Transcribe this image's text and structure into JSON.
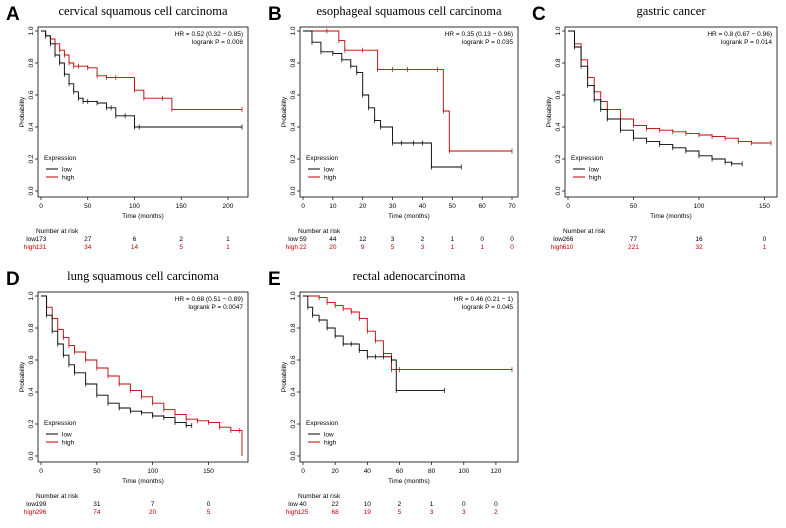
{
  "colors": {
    "low": "#000000",
    "high": "#c00000"
  },
  "common": {
    "ylabel": "Probability",
    "xlabel": "Time (months)",
    "legend_title": "Expression",
    "legend_low": "low",
    "legend_high": "high",
    "risk_title": "Number at risk",
    "risk_low_label": "low",
    "risk_high_label": "high"
  },
  "panels": [
    {
      "label": "A",
      "title": "cervical squamous cell carcinoma",
      "hr": "HR = 0.52 (0.32 − 0.85)",
      "logrank": "logrank P = 0.008",
      "xlim": [
        0,
        215
      ],
      "xticks": [
        0,
        50,
        100,
        150,
        200
      ],
      "risk_ticks": [
        0,
        50,
        100,
        150,
        200
      ],
      "risk_low": [
        "173",
        "27",
        "6",
        "2",
        "1"
      ],
      "risk_high": [
        "131",
        "34",
        "14",
        "5",
        "1"
      ]
    },
    {
      "label": "B",
      "title": "esophageal squamous cell carcinoma",
      "hr": "HR = 0.35 (0.13 − 0.96)",
      "logrank": "logrank P = 0.035",
      "xlim": [
        0,
        70
      ],
      "xticks": [
        0,
        10,
        20,
        30,
        40,
        50,
        60,
        70
      ],
      "risk_ticks": [
        0,
        10,
        20,
        30,
        40,
        50,
        60,
        70
      ],
      "risk_low": [
        "59",
        "44",
        "12",
        "3",
        "2",
        "1",
        "0",
        "0"
      ],
      "risk_high": [
        "22",
        "20",
        "9",
        "5",
        "3",
        "1",
        "1",
        "0"
      ]
    },
    {
      "label": "C",
      "title": "gastric cancer",
      "hr": "HR = 0.8 (0.67 − 0.96)",
      "logrank": "logrank P = 0.014",
      "xlim": [
        0,
        155
      ],
      "xticks": [
        0,
        50,
        100,
        150
      ],
      "risk_ticks": [
        0,
        50,
        100,
        150
      ],
      "risk_low": [
        "266",
        "77",
        "16",
        "0"
      ],
      "risk_high": [
        "610",
        "221",
        "32",
        "1"
      ]
    },
    {
      "label": "D",
      "title": "lung squamous cell carcinoma",
      "hr": "HR = 0.68 (0.51 − 0.89)",
      "logrank": "logrank P = 0.0047",
      "xlim": [
        0,
        180
      ],
      "xticks": [
        0,
        50,
        100,
        150
      ],
      "risk_ticks": [
        0,
        50,
        100,
        150
      ],
      "risk_low": [
        "199",
        "31",
        "7",
        "0"
      ],
      "risk_high": [
        "296",
        "74",
        "20",
        "5"
      ]
    },
    {
      "label": "E",
      "title": "rectal adenocarcinoma",
      "hr": "HR = 0.46 (0.21 − 1)",
      "logrank": "logrank P = 0.045",
      "xlim": [
        0,
        130
      ],
      "xticks": [
        0,
        20,
        40,
        60,
        80,
        100,
        120
      ],
      "risk_ticks": [
        0,
        20,
        40,
        60,
        80,
        100,
        120
      ],
      "risk_low": [
        "40",
        "22",
        "10",
        "2",
        "1",
        "0",
        "0"
      ],
      "risk_high": [
        "125",
        "68",
        "19",
        "5",
        "3",
        "3",
        "2"
      ]
    }
  ],
  "chart_data": [
    {
      "type": "line",
      "title": "cervical squamous cell carcinoma",
      "xlabel": "Time (months)",
      "ylabel": "Probability",
      "ylim": [
        0,
        1
      ],
      "series": [
        {
          "name": "low",
          "x": [
            0,
            5,
            10,
            15,
            20,
            25,
            30,
            35,
            40,
            45,
            50,
            60,
            70,
            75,
            80,
            90,
            100,
            105,
            215
          ],
          "y": [
            1,
            0.97,
            0.92,
            0.85,
            0.8,
            0.73,
            0.67,
            0.62,
            0.58,
            0.56,
            0.56,
            0.55,
            0.52,
            0.52,
            0.47,
            0.47,
            0.4,
            0.4,
            0.4
          ]
        },
        {
          "name": "high",
          "x": [
            0,
            5,
            10,
            15,
            20,
            25,
            30,
            35,
            40,
            50,
            60,
            70,
            80,
            100,
            110,
            130,
            140,
            215
          ],
          "y": [
            1,
            0.97,
            0.95,
            0.92,
            0.88,
            0.85,
            0.8,
            0.78,
            0.78,
            0.77,
            0.72,
            0.71,
            0.71,
            0.63,
            0.58,
            0.58,
            0.51,
            0.51
          ]
        }
      ]
    },
    {
      "type": "line",
      "title": "esophageal squamous cell carcinoma",
      "xlabel": "Time (months)",
      "ylabel": "Probability",
      "ylim": [
        0,
        1
      ],
      "series": [
        {
          "name": "low",
          "x": [
            0,
            3,
            6,
            10,
            13,
            16,
            18,
            20,
            22,
            24,
            26,
            30,
            33,
            37,
            40,
            43,
            53
          ],
          "y": [
            1,
            0.93,
            0.87,
            0.86,
            0.82,
            0.78,
            0.74,
            0.6,
            0.52,
            0.44,
            0.4,
            0.3,
            0.3,
            0.3,
            0.3,
            0.15,
            0.15
          ]
        },
        {
          "name": "high",
          "x": [
            0,
            8,
            12,
            14,
            20,
            25,
            30,
            35,
            45,
            47,
            49,
            70
          ],
          "y": [
            1,
            1,
            0.94,
            0.88,
            0.88,
            0.76,
            0.76,
            0.76,
            0.76,
            0.5,
            0.25,
            0.25
          ]
        }
      ]
    },
    {
      "type": "line",
      "title": "gastric cancer",
      "xlabel": "Time (months)",
      "ylabel": "Probability",
      "ylim": [
        0,
        1
      ],
      "series": [
        {
          "name": "low",
          "x": [
            0,
            5,
            10,
            15,
            20,
            25,
            30,
            40,
            50,
            60,
            70,
            80,
            90,
            100,
            110,
            120,
            125,
            133
          ],
          "y": [
            1,
            0.9,
            0.78,
            0.66,
            0.57,
            0.51,
            0.45,
            0.38,
            0.33,
            0.31,
            0.29,
            0.27,
            0.25,
            0.22,
            0.2,
            0.18,
            0.17,
            0.17
          ]
        },
        {
          "name": "high",
          "x": [
            0,
            5,
            10,
            15,
            20,
            25,
            30,
            40,
            50,
            60,
            70,
            80,
            90,
            100,
            110,
            120,
            130,
            140,
            155
          ],
          "y": [
            1,
            0.92,
            0.82,
            0.71,
            0.62,
            0.56,
            0.51,
            0.45,
            0.41,
            0.39,
            0.38,
            0.37,
            0.36,
            0.35,
            0.34,
            0.33,
            0.31,
            0.3,
            0.3
          ]
        }
      ]
    },
    {
      "type": "line",
      "title": "lung squamous cell carcinoma",
      "xlabel": "Time (months)",
      "ylabel": "Probability",
      "ylim": [
        0,
        1
      ],
      "series": [
        {
          "name": "low",
          "x": [
            0,
            5,
            10,
            15,
            20,
            25,
            30,
            40,
            50,
            60,
            70,
            80,
            90,
            100,
            110,
            120,
            130,
            135
          ],
          "y": [
            1,
            0.88,
            0.78,
            0.7,
            0.63,
            0.57,
            0.52,
            0.45,
            0.38,
            0.33,
            0.3,
            0.28,
            0.27,
            0.25,
            0.24,
            0.21,
            0.19,
            0.19
          ]
        },
        {
          "name": "high",
          "x": [
            0,
            5,
            10,
            15,
            20,
            25,
            30,
            40,
            50,
            60,
            70,
            80,
            90,
            100,
            110,
            120,
            130,
            140,
            150,
            160,
            170,
            178,
            180
          ],
          "y": [
            1,
            0.93,
            0.86,
            0.79,
            0.74,
            0.69,
            0.65,
            0.6,
            0.55,
            0.5,
            0.45,
            0.41,
            0.37,
            0.33,
            0.29,
            0.26,
            0.23,
            0.22,
            0.21,
            0.18,
            0.16,
            0.16,
            0
          ]
        }
      ]
    },
    {
      "type": "line",
      "title": "rectal adenocarcinoma",
      "xlabel": "Time (months)",
      "ylabel": "Probability",
      "ylim": [
        0,
        1
      ],
      "series": [
        {
          "name": "low",
          "x": [
            0,
            3,
            6,
            10,
            15,
            20,
            25,
            30,
            35,
            40,
            45,
            50,
            55,
            58,
            88
          ],
          "y": [
            1,
            0.93,
            0.88,
            0.85,
            0.8,
            0.75,
            0.7,
            0.7,
            0.66,
            0.62,
            0.62,
            0.62,
            0.6,
            0.41,
            0.41
          ]
        },
        {
          "name": "high",
          "x": [
            0,
            10,
            15,
            20,
            25,
            30,
            35,
            40,
            45,
            50,
            55,
            60,
            130
          ],
          "y": [
            1,
            0.99,
            0.96,
            0.94,
            0.92,
            0.9,
            0.86,
            0.78,
            0.72,
            0.64,
            0.54,
            0.54,
            0.54
          ]
        }
      ]
    }
  ]
}
